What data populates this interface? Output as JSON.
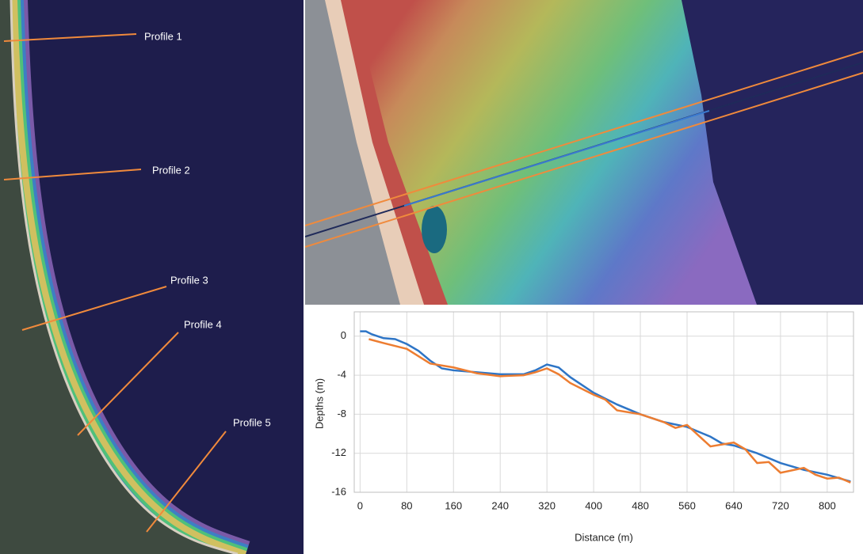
{
  "map": {
    "labels": [
      "Profile  1",
      "Profile  2",
      "Profile  3",
      "Profile  4",
      "Profile  5"
    ]
  },
  "chart_data": {
    "type": "line",
    "x_label": "Distance (m)",
    "y_label": "Depths (m)",
    "xlim": [
      -10,
      845
    ],
    "ylim": [
      -16,
      2.5
    ],
    "xticks": [
      0,
      80,
      160,
      240,
      320,
      400,
      480,
      560,
      640,
      720,
      800
    ],
    "yticks": [
      0,
      -4,
      -8,
      -12,
      -16
    ],
    "grid": true,
    "series": [
      {
        "color": "#2e75c6",
        "x": [
          0,
          10,
          20,
          40,
          60,
          80,
          100,
          120,
          140,
          160,
          200,
          240,
          280,
          300,
          320,
          340,
          360,
          380,
          400,
          440,
          480,
          520,
          560,
          600,
          620,
          640,
          680,
          720,
          760,
          800,
          840
        ],
        "values": [
          0.5,
          0.5,
          0.2,
          -0.2,
          -0.3,
          -0.8,
          -1.5,
          -2.5,
          -3.3,
          -3.5,
          -3.7,
          -3.9,
          -3.9,
          -3.5,
          -2.9,
          -3.2,
          -4.2,
          -5.0,
          -5.8,
          -7.0,
          -8.0,
          -8.8,
          -9.3,
          -10.3,
          -11.0,
          -11.2,
          -12.0,
          -13.0,
          -13.7,
          -14.2,
          -14.9
        ]
      },
      {
        "color": "#ed7d31",
        "x": [
          15,
          40,
          80,
          120,
          160,
          200,
          240,
          280,
          300,
          320,
          340,
          360,
          400,
          420,
          440,
          480,
          520,
          540,
          560,
          580,
          600,
          640,
          660,
          680,
          700,
          720,
          760,
          780,
          800,
          820,
          840
        ],
        "values": [
          -0.3,
          -0.7,
          -1.3,
          -2.8,
          -3.2,
          -3.8,
          -4.1,
          -4.0,
          -3.7,
          -3.3,
          -3.9,
          -4.8,
          -6.0,
          -6.5,
          -7.6,
          -8.0,
          -8.8,
          -9.4,
          -9.1,
          -10.2,
          -11.3,
          -10.9,
          -11.6,
          -13.0,
          -12.9,
          -14.0,
          -13.5,
          -14.2,
          -14.6,
          -14.5,
          -15.0
        ]
      }
    ]
  }
}
